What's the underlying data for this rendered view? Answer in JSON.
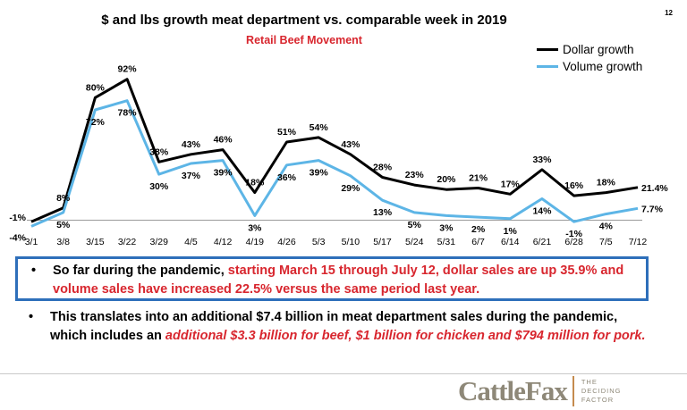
{
  "page_number": "12",
  "bullets": {
    "first": {
      "plain": "So far during the pandemic, ",
      "highlight": "starting March 15 through July 12, dollar sales are up 35.9% and volume sales have increased 22.5% versus the same period last year."
    },
    "second": {
      "plain": "This translates into an additional $7.4 billion in meat department sales during the pandemic, which includes an ",
      "highlight": "additional $3.3 billion for beef, $1 billion for chicken and $794 million for pork."
    }
  },
  "logo": {
    "name": "CattleFax",
    "tagline": "THE DECIDING FACTOR"
  },
  "colors": {
    "dollar": "#000000",
    "volume": "#5db5e6",
    "accent_red": "#d8262e",
    "box_border": "#2e6fba"
  },
  "chart_data": {
    "type": "line",
    "title": "$ and lbs growth meat department vs. comparable week in 2019",
    "subtitle": "Retail Beef Movement",
    "categories": [
      "3/1",
      "3/8",
      "3/15",
      "3/22",
      "3/29",
      "4/5",
      "4/12",
      "4/19",
      "4/26",
      "5/3",
      "5/10",
      "5/17",
      "5/24",
      "5/31",
      "6/7",
      "6/14",
      "6/21",
      "6/28",
      "7/5",
      "7/12"
    ],
    "series": [
      {
        "name": "Dollar growth",
        "values": [
          -1,
          8,
          80,
          92,
          38,
          43,
          46,
          18,
          51,
          54,
          43,
          28,
          23,
          20,
          21,
          17,
          33,
          16,
          18,
          21.4
        ],
        "labels": [
          "-1%",
          "8%",
          "80%",
          "92%",
          "38%",
          "43%",
          "46%",
          "18%",
          "51%",
          "54%",
          "43%",
          "28%",
          "23%",
          "20%",
          "21%",
          "17%",
          "33%",
          "16%",
          "18%",
          "21.4%"
        ]
      },
      {
        "name": "Volume growth",
        "values": [
          -4,
          5,
          72,
          78,
          30,
          37,
          39,
          3,
          36,
          39,
          29,
          13,
          5,
          3,
          2,
          1,
          14,
          -1,
          4,
          7.7
        ],
        "labels": [
          "-4%",
          "5%",
          "72%",
          "78%",
          "30%",
          "37%",
          "39%",
          "3%",
          "36%",
          "39%",
          "29%",
          "13%",
          "5%",
          "3%",
          "2%",
          "1%",
          "14%",
          "-1%",
          "4%",
          "7.7%"
        ]
      }
    ],
    "legend_position": "top-right",
    "grid": false,
    "ylim": [
      -5,
      95
    ]
  }
}
